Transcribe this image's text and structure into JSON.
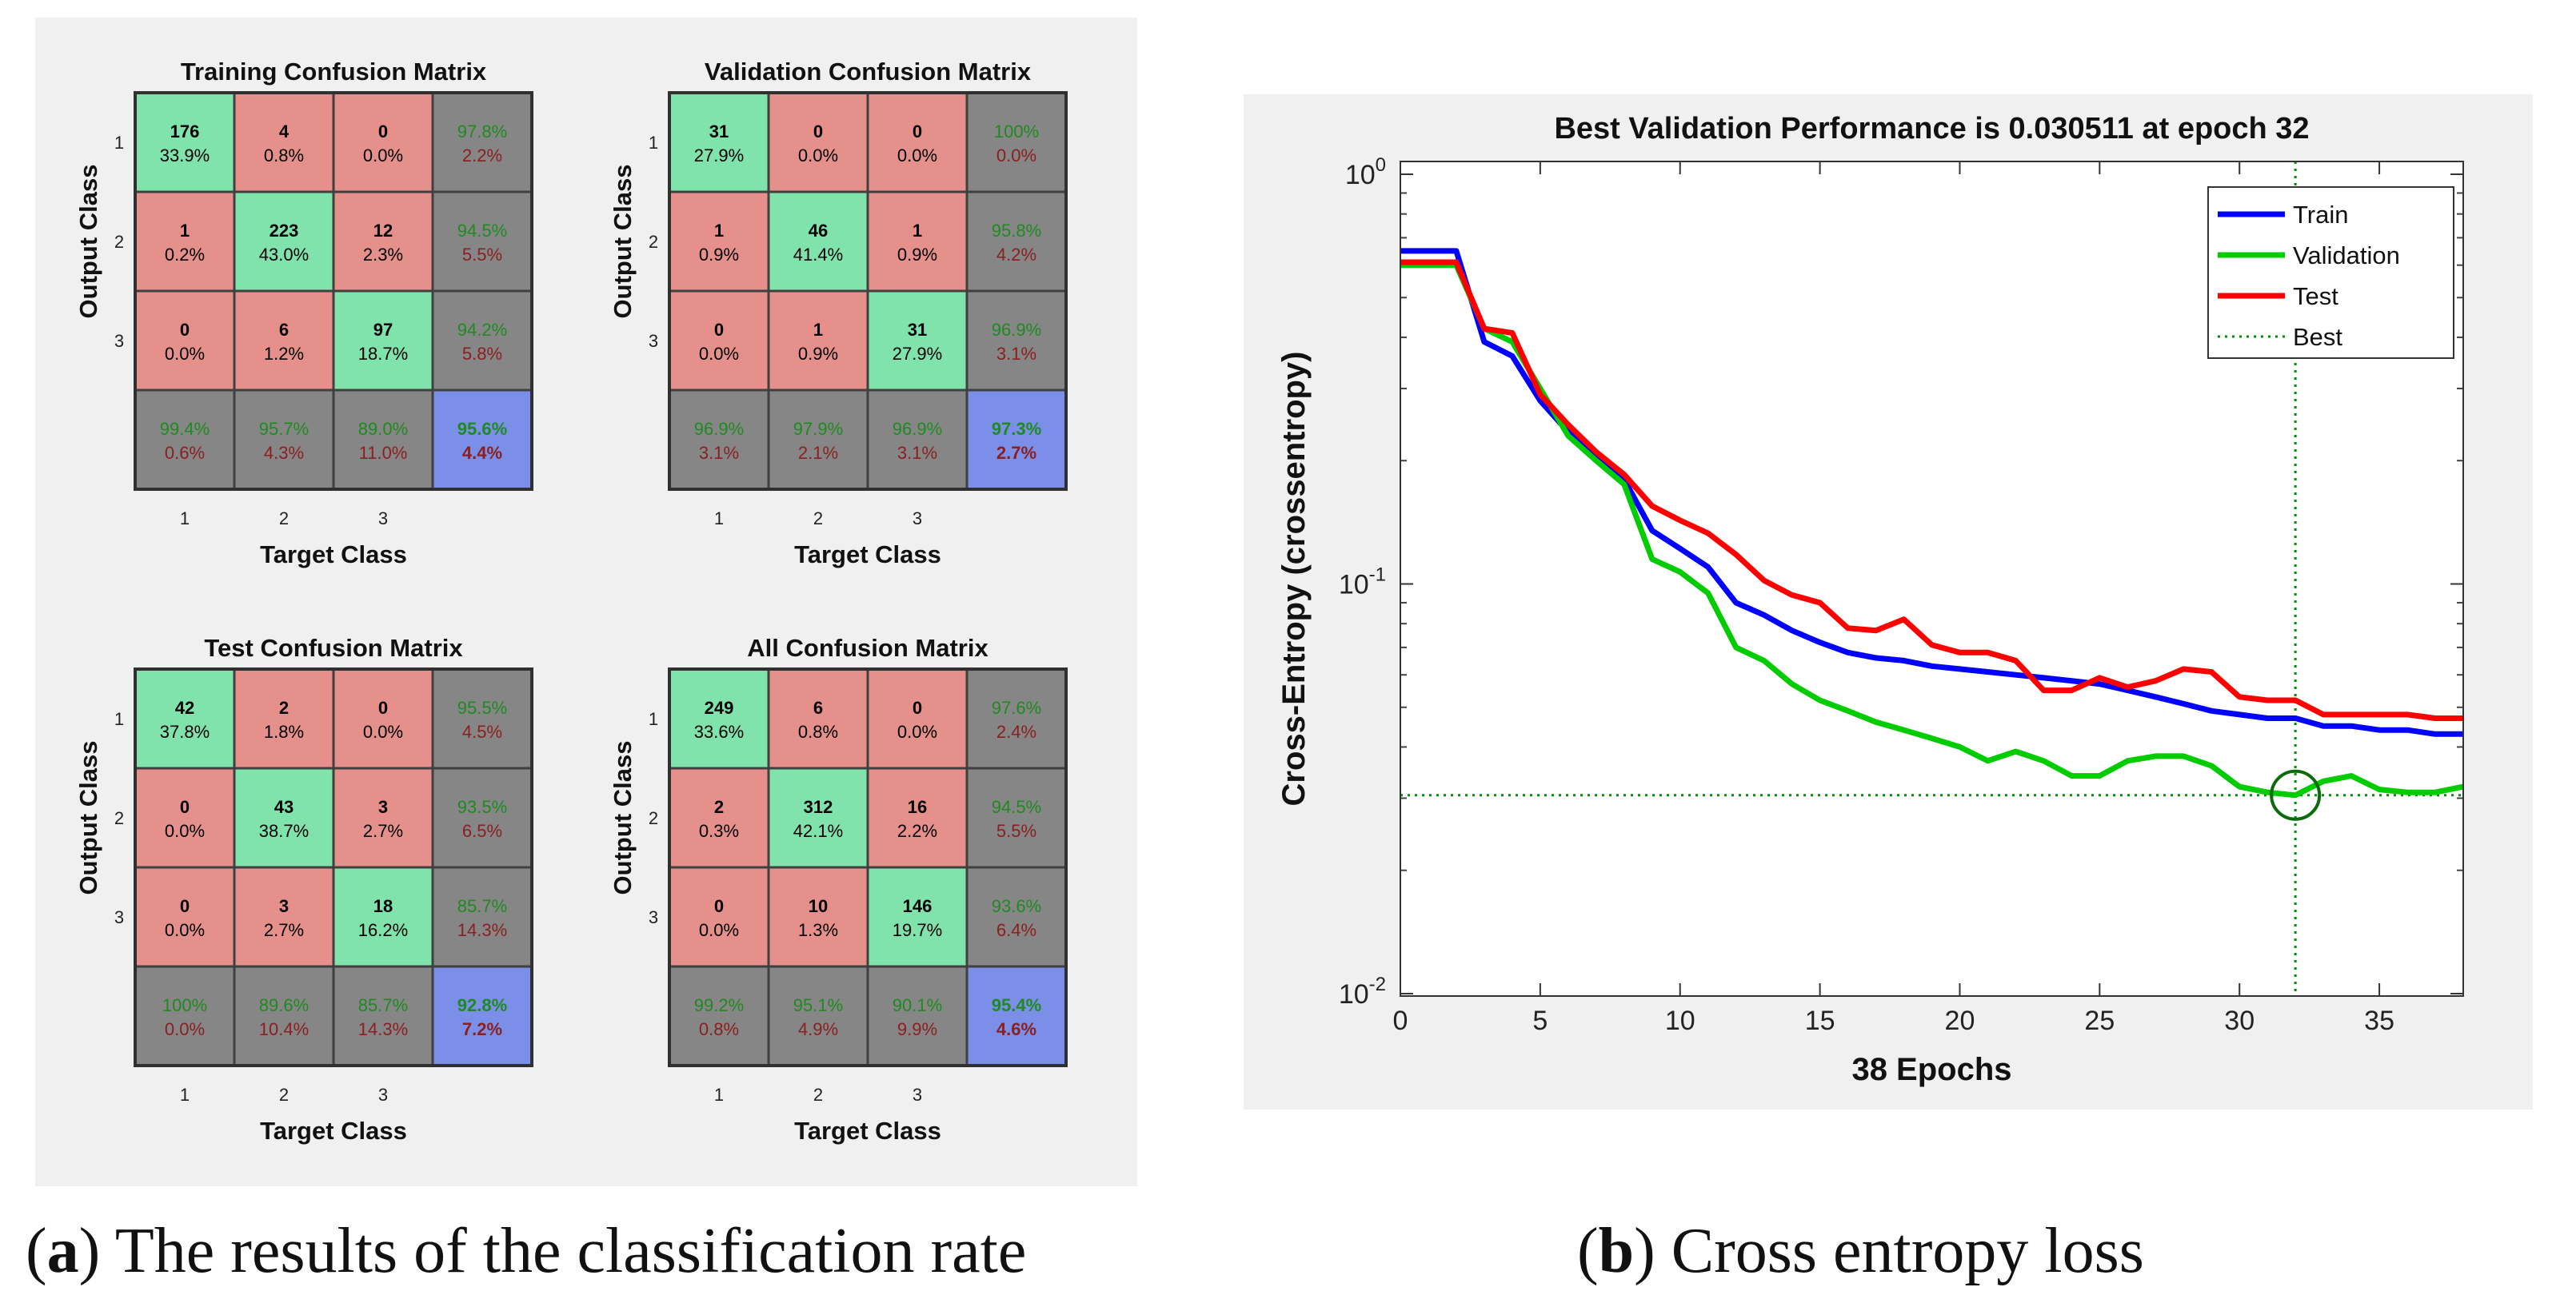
{
  "captions": {
    "a_letter": "a",
    "a_text": "The results of the classification rate",
    "b_letter": "b",
    "b_text": "Cross entropy loss"
  },
  "colors": {
    "correct": "#7fe3ab",
    "wrong": "#e5908b",
    "summary": "#868686",
    "overall": "#7b8fe8",
    "pct_good": "#1f8a1f",
    "pct_bad": "#8a1f1f",
    "train": "#0000ff",
    "validation": "#00cc00",
    "test": "#ff0000",
    "best": "#009000"
  },
  "chart_data": [
    {
      "type": "heatmap",
      "title": "Training Confusion Matrix",
      "xlabel": "Target Class",
      "ylabel": "Output Class",
      "classes": [
        "1",
        "2",
        "3"
      ],
      "counts": [
        [
          "176",
          "4",
          "0"
        ],
        [
          "1",
          "223",
          "12"
        ],
        [
          "0",
          "6",
          "97"
        ]
      ],
      "percents": [
        [
          "33.9%",
          "0.8%",
          "0.0%"
        ],
        [
          "0.2%",
          "43.0%",
          "2.3%"
        ],
        [
          "0.0%",
          "1.2%",
          "18.7%"
        ]
      ],
      "row_summary": [
        [
          "97.8%",
          "2.2%"
        ],
        [
          "94.5%",
          "5.5%"
        ],
        [
          "94.2%",
          "5.8%"
        ]
      ],
      "col_summary": [
        [
          "99.4%",
          "0.6%"
        ],
        [
          "95.7%",
          "4.3%"
        ],
        [
          "89.0%",
          "11.0%"
        ]
      ],
      "overall": [
        "95.6%",
        "4.4%"
      ]
    },
    {
      "type": "heatmap",
      "title": "Validation Confusion Matrix",
      "xlabel": "Target Class",
      "ylabel": "Output Class",
      "classes": [
        "1",
        "2",
        "3"
      ],
      "counts": [
        [
          "31",
          "0",
          "0"
        ],
        [
          "1",
          "46",
          "1"
        ],
        [
          "0",
          "1",
          "31"
        ]
      ],
      "percents": [
        [
          "27.9%",
          "0.0%",
          "0.0%"
        ],
        [
          "0.9%",
          "41.4%",
          "0.9%"
        ],
        [
          "0.0%",
          "0.9%",
          "27.9%"
        ]
      ],
      "row_summary": [
        [
          "100%",
          "0.0%"
        ],
        [
          "95.8%",
          "4.2%"
        ],
        [
          "96.9%",
          "3.1%"
        ]
      ],
      "col_summary": [
        [
          "96.9%",
          "3.1%"
        ],
        [
          "97.9%",
          "2.1%"
        ],
        [
          "96.9%",
          "3.1%"
        ]
      ],
      "overall": [
        "97.3%",
        "2.7%"
      ]
    },
    {
      "type": "heatmap",
      "title": "Test Confusion Matrix",
      "xlabel": "Target Class",
      "ylabel": "Output Class",
      "classes": [
        "1",
        "2",
        "3"
      ],
      "counts": [
        [
          "42",
          "2",
          "0"
        ],
        [
          "0",
          "43",
          "3"
        ],
        [
          "0",
          "3",
          "18"
        ]
      ],
      "percents": [
        [
          "37.8%",
          "1.8%",
          "0.0%"
        ],
        [
          "0.0%",
          "38.7%",
          "2.7%"
        ],
        [
          "0.0%",
          "2.7%",
          "16.2%"
        ]
      ],
      "row_summary": [
        [
          "95.5%",
          "4.5%"
        ],
        [
          "93.5%",
          "6.5%"
        ],
        [
          "85.7%",
          "14.3%"
        ]
      ],
      "col_summary": [
        [
          "100%",
          "0.0%"
        ],
        [
          "89.6%",
          "10.4%"
        ],
        [
          "85.7%",
          "14.3%"
        ]
      ],
      "overall": [
        "92.8%",
        "7.2%"
      ]
    },
    {
      "type": "heatmap",
      "title": "All Confusion Matrix",
      "xlabel": "Target Class",
      "ylabel": "Output Class",
      "classes": [
        "1",
        "2",
        "3"
      ],
      "counts": [
        [
          "249",
          "6",
          "0"
        ],
        [
          "2",
          "312",
          "16"
        ],
        [
          "0",
          "10",
          "146"
        ]
      ],
      "percents": [
        [
          "33.6%",
          "0.8%",
          "0.0%"
        ],
        [
          "0.3%",
          "42.1%",
          "2.2%"
        ],
        [
          "0.0%",
          "1.3%",
          "19.7%"
        ]
      ],
      "row_summary": [
        [
          "97.6%",
          "2.4%"
        ],
        [
          "94.5%",
          "5.5%"
        ],
        [
          "93.6%",
          "6.4%"
        ]
      ],
      "col_summary": [
        [
          "99.2%",
          "0.8%"
        ],
        [
          "95.1%",
          "4.9%"
        ],
        [
          "90.1%",
          "9.9%"
        ]
      ],
      "overall": [
        "95.4%",
        "4.6%"
      ]
    },
    {
      "type": "line",
      "title": "Best Validation Performance is 0.030511 at epoch 32",
      "xlabel": "38 Epochs",
      "ylabel": "Cross-Entropy  (crossentropy)",
      "yscale": "log",
      "xlim": [
        0,
        38
      ],
      "ylim": [
        0.01,
        1
      ],
      "xticks": [
        0,
        5,
        10,
        15,
        20,
        25,
        30,
        35
      ],
      "yticks": [
        {
          "value": 1,
          "base": "10",
          "exp": "0"
        },
        {
          "value": 0.1,
          "base": "10",
          "exp": "-1"
        },
        {
          "value": 0.01,
          "base": "10",
          "exp": "-2"
        }
      ],
      "legend_position": "top-right",
      "best": {
        "epoch": 32,
        "value": 0.030511,
        "label": "Best"
      },
      "series": [
        {
          "name": "Train",
          "color_key": "train",
          "x": [
            0,
            1,
            2,
            3,
            4,
            5,
            6,
            7,
            8,
            9,
            10,
            11,
            12,
            13,
            14,
            15,
            16,
            17,
            18,
            19,
            20,
            21,
            22,
            23,
            24,
            25,
            26,
            27,
            28,
            29,
            30,
            31,
            32,
            33,
            34,
            35,
            36,
            37,
            38
          ],
          "y": [
            0.65,
            0.65,
            0.65,
            0.39,
            0.36,
            0.28,
            0.235,
            0.205,
            0.18,
            0.135,
            0.122,
            0.11,
            0.09,
            0.084,
            0.077,
            0.072,
            0.068,
            0.066,
            0.065,
            0.063,
            0.062,
            0.061,
            0.06,
            0.059,
            0.058,
            0.057,
            0.055,
            0.053,
            0.051,
            0.049,
            0.048,
            0.047,
            0.047,
            0.045,
            0.045,
            0.044,
            0.044,
            0.043,
            0.043
          ]
        },
        {
          "name": "Validation",
          "color_key": "validation",
          "x": [
            0,
            1,
            2,
            3,
            4,
            5,
            6,
            7,
            8,
            9,
            10,
            11,
            12,
            13,
            14,
            15,
            16,
            17,
            18,
            19,
            20,
            21,
            22,
            23,
            24,
            25,
            26,
            27,
            28,
            29,
            30,
            31,
            32,
            33,
            34,
            35,
            36,
            37,
            38
          ],
          "y": [
            0.6,
            0.6,
            0.6,
            0.42,
            0.39,
            0.3,
            0.23,
            0.2,
            0.175,
            0.115,
            0.107,
            0.095,
            0.07,
            0.065,
            0.057,
            0.052,
            0.049,
            0.046,
            0.044,
            0.042,
            0.04,
            0.037,
            0.039,
            0.037,
            0.034,
            0.034,
            0.037,
            0.038,
            0.038,
            0.036,
            0.032,
            0.031,
            0.0305,
            0.033,
            0.034,
            0.0315,
            0.031,
            0.031,
            0.032
          ]
        },
        {
          "name": "Test",
          "color_key": "test",
          "x": [
            0,
            1,
            2,
            3,
            4,
            5,
            6,
            7,
            8,
            9,
            10,
            11,
            12,
            13,
            14,
            15,
            16,
            17,
            18,
            19,
            20,
            21,
            22,
            23,
            24,
            25,
            26,
            27,
            28,
            29,
            30,
            31,
            32,
            33,
            34,
            35,
            36,
            37,
            38
          ],
          "y": [
            0.61,
            0.61,
            0.61,
            0.42,
            0.41,
            0.29,
            0.245,
            0.21,
            0.185,
            0.155,
            0.143,
            0.133,
            0.118,
            0.102,
            0.094,
            0.09,
            0.078,
            0.077,
            0.082,
            0.071,
            0.068,
            0.068,
            0.065,
            0.055,
            0.055,
            0.059,
            0.056,
            0.058,
            0.062,
            0.061,
            0.053,
            0.052,
            0.052,
            0.048,
            0.048,
            0.048,
            0.048,
            0.047,
            0.047
          ]
        }
      ]
    }
  ]
}
